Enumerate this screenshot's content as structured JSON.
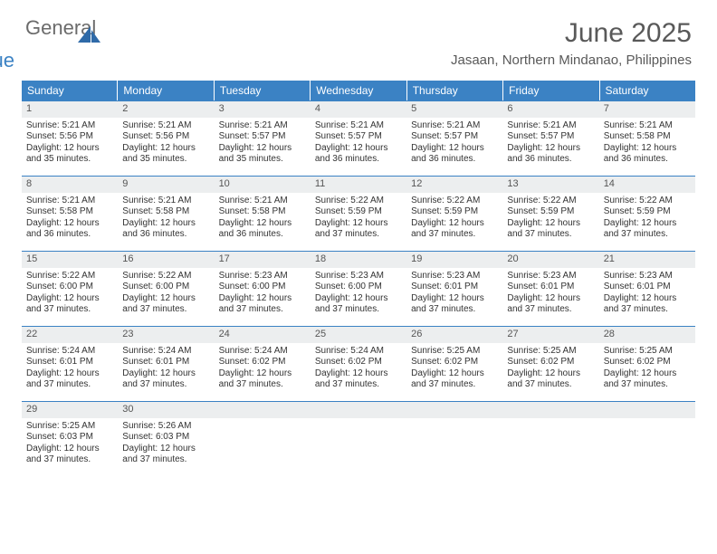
{
  "brand": {
    "line1": "General",
    "line2": "Blue"
  },
  "title": "June 2025",
  "location": "Jasaan, Northern Mindanao, Philippines",
  "colors": {
    "header_bg": "#3b82c4",
    "header_fg": "#ffffff",
    "daynum_bg": "#eceeef",
    "text": "#333333",
    "title_color": "#595959",
    "row_border": "#3b82c4"
  },
  "typography": {
    "month_title_fontsize": 30,
    "location_fontsize": 15,
    "dow_fontsize": 12,
    "daynum_fontsize": 11,
    "body_fontsize": 10
  },
  "days_of_week": [
    "Sunday",
    "Monday",
    "Tuesday",
    "Wednesday",
    "Thursday",
    "Friday",
    "Saturday"
  ],
  "weeks": [
    [
      {
        "n": "1",
        "sr": "Sunrise: 5:21 AM",
        "ss": "Sunset: 5:56 PM",
        "d1": "Daylight: 12 hours",
        "d2": "and 35 minutes."
      },
      {
        "n": "2",
        "sr": "Sunrise: 5:21 AM",
        "ss": "Sunset: 5:56 PM",
        "d1": "Daylight: 12 hours",
        "d2": "and 35 minutes."
      },
      {
        "n": "3",
        "sr": "Sunrise: 5:21 AM",
        "ss": "Sunset: 5:57 PM",
        "d1": "Daylight: 12 hours",
        "d2": "and 35 minutes."
      },
      {
        "n": "4",
        "sr": "Sunrise: 5:21 AM",
        "ss": "Sunset: 5:57 PM",
        "d1": "Daylight: 12 hours",
        "d2": "and 36 minutes."
      },
      {
        "n": "5",
        "sr": "Sunrise: 5:21 AM",
        "ss": "Sunset: 5:57 PM",
        "d1": "Daylight: 12 hours",
        "d2": "and 36 minutes."
      },
      {
        "n": "6",
        "sr": "Sunrise: 5:21 AM",
        "ss": "Sunset: 5:57 PM",
        "d1": "Daylight: 12 hours",
        "d2": "and 36 minutes."
      },
      {
        "n": "7",
        "sr": "Sunrise: 5:21 AM",
        "ss": "Sunset: 5:58 PM",
        "d1": "Daylight: 12 hours",
        "d2": "and 36 minutes."
      }
    ],
    [
      {
        "n": "8",
        "sr": "Sunrise: 5:21 AM",
        "ss": "Sunset: 5:58 PM",
        "d1": "Daylight: 12 hours",
        "d2": "and 36 minutes."
      },
      {
        "n": "9",
        "sr": "Sunrise: 5:21 AM",
        "ss": "Sunset: 5:58 PM",
        "d1": "Daylight: 12 hours",
        "d2": "and 36 minutes."
      },
      {
        "n": "10",
        "sr": "Sunrise: 5:21 AM",
        "ss": "Sunset: 5:58 PM",
        "d1": "Daylight: 12 hours",
        "d2": "and 36 minutes."
      },
      {
        "n": "11",
        "sr": "Sunrise: 5:22 AM",
        "ss": "Sunset: 5:59 PM",
        "d1": "Daylight: 12 hours",
        "d2": "and 37 minutes."
      },
      {
        "n": "12",
        "sr": "Sunrise: 5:22 AM",
        "ss": "Sunset: 5:59 PM",
        "d1": "Daylight: 12 hours",
        "d2": "and 37 minutes."
      },
      {
        "n": "13",
        "sr": "Sunrise: 5:22 AM",
        "ss": "Sunset: 5:59 PM",
        "d1": "Daylight: 12 hours",
        "d2": "and 37 minutes."
      },
      {
        "n": "14",
        "sr": "Sunrise: 5:22 AM",
        "ss": "Sunset: 5:59 PM",
        "d1": "Daylight: 12 hours",
        "d2": "and 37 minutes."
      }
    ],
    [
      {
        "n": "15",
        "sr": "Sunrise: 5:22 AM",
        "ss": "Sunset: 6:00 PM",
        "d1": "Daylight: 12 hours",
        "d2": "and 37 minutes."
      },
      {
        "n": "16",
        "sr": "Sunrise: 5:22 AM",
        "ss": "Sunset: 6:00 PM",
        "d1": "Daylight: 12 hours",
        "d2": "and 37 minutes."
      },
      {
        "n": "17",
        "sr": "Sunrise: 5:23 AM",
        "ss": "Sunset: 6:00 PM",
        "d1": "Daylight: 12 hours",
        "d2": "and 37 minutes."
      },
      {
        "n": "18",
        "sr": "Sunrise: 5:23 AM",
        "ss": "Sunset: 6:00 PM",
        "d1": "Daylight: 12 hours",
        "d2": "and 37 minutes."
      },
      {
        "n": "19",
        "sr": "Sunrise: 5:23 AM",
        "ss": "Sunset: 6:01 PM",
        "d1": "Daylight: 12 hours",
        "d2": "and 37 minutes."
      },
      {
        "n": "20",
        "sr": "Sunrise: 5:23 AM",
        "ss": "Sunset: 6:01 PM",
        "d1": "Daylight: 12 hours",
        "d2": "and 37 minutes."
      },
      {
        "n": "21",
        "sr": "Sunrise: 5:23 AM",
        "ss": "Sunset: 6:01 PM",
        "d1": "Daylight: 12 hours",
        "d2": "and 37 minutes."
      }
    ],
    [
      {
        "n": "22",
        "sr": "Sunrise: 5:24 AM",
        "ss": "Sunset: 6:01 PM",
        "d1": "Daylight: 12 hours",
        "d2": "and 37 minutes."
      },
      {
        "n": "23",
        "sr": "Sunrise: 5:24 AM",
        "ss": "Sunset: 6:01 PM",
        "d1": "Daylight: 12 hours",
        "d2": "and 37 minutes."
      },
      {
        "n": "24",
        "sr": "Sunrise: 5:24 AM",
        "ss": "Sunset: 6:02 PM",
        "d1": "Daylight: 12 hours",
        "d2": "and 37 minutes."
      },
      {
        "n": "25",
        "sr": "Sunrise: 5:24 AM",
        "ss": "Sunset: 6:02 PM",
        "d1": "Daylight: 12 hours",
        "d2": "and 37 minutes."
      },
      {
        "n": "26",
        "sr": "Sunrise: 5:25 AM",
        "ss": "Sunset: 6:02 PM",
        "d1": "Daylight: 12 hours",
        "d2": "and 37 minutes."
      },
      {
        "n": "27",
        "sr": "Sunrise: 5:25 AM",
        "ss": "Sunset: 6:02 PM",
        "d1": "Daylight: 12 hours",
        "d2": "and 37 minutes."
      },
      {
        "n": "28",
        "sr": "Sunrise: 5:25 AM",
        "ss": "Sunset: 6:02 PM",
        "d1": "Daylight: 12 hours",
        "d2": "and 37 minutes."
      }
    ],
    [
      {
        "n": "29",
        "sr": "Sunrise: 5:25 AM",
        "ss": "Sunset: 6:03 PM",
        "d1": "Daylight: 12 hours",
        "d2": "and 37 minutes."
      },
      {
        "n": "30",
        "sr": "Sunrise: 5:26 AM",
        "ss": "Sunset: 6:03 PM",
        "d1": "Daylight: 12 hours",
        "d2": "and 37 minutes."
      },
      {
        "n": "",
        "sr": "",
        "ss": "",
        "d1": "",
        "d2": "",
        "empty": true
      },
      {
        "n": "",
        "sr": "",
        "ss": "",
        "d1": "",
        "d2": "",
        "empty": true
      },
      {
        "n": "",
        "sr": "",
        "ss": "",
        "d1": "",
        "d2": "",
        "empty": true
      },
      {
        "n": "",
        "sr": "",
        "ss": "",
        "d1": "",
        "d2": "",
        "empty": true
      },
      {
        "n": "",
        "sr": "",
        "ss": "",
        "d1": "",
        "d2": "",
        "empty": true
      }
    ]
  ]
}
